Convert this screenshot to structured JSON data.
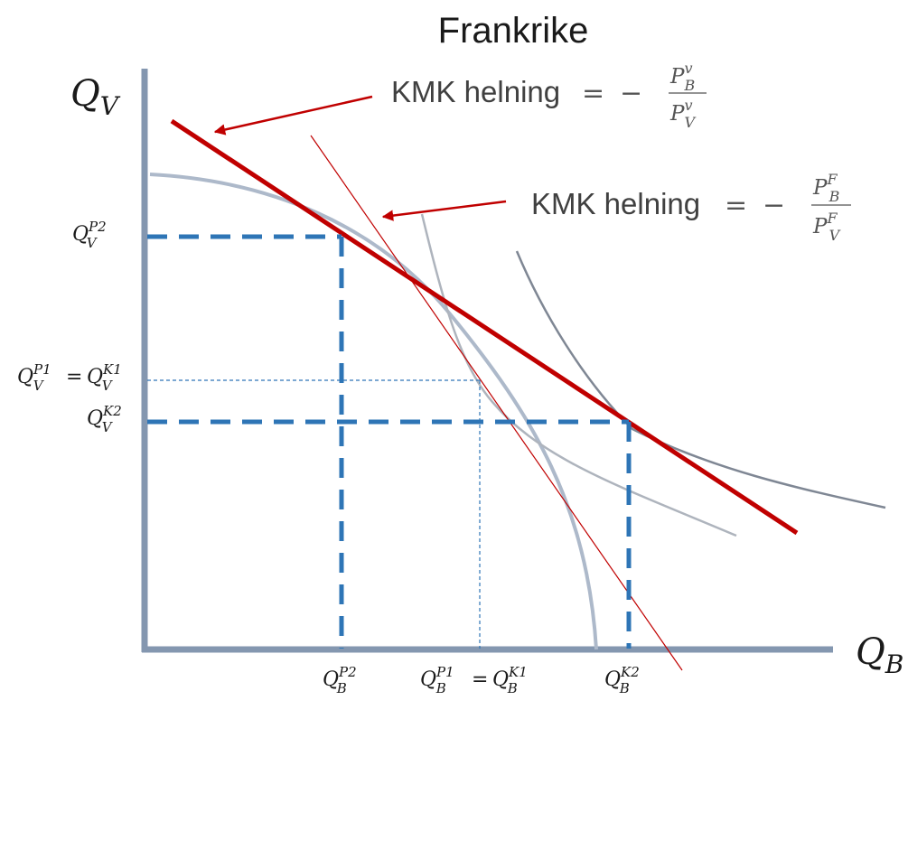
{
  "title": "Frankrike",
  "axes": {
    "y_label": {
      "main": "Q",
      "sub": "V"
    },
    "x_label": {
      "main": "Q",
      "sub": "B"
    }
  },
  "slope_labels": {
    "world": {
      "text": "KMK helning",
      "equals": "=",
      "minus": "−",
      "num": {
        "main": "P",
        "sup": "v",
        "sub": "B"
      },
      "den": {
        "main": "P",
        "sup": "v",
        "sub": "V"
      }
    },
    "france": {
      "text": "KMK helning",
      "equals": "=",
      "minus": "−",
      "num": {
        "main": "P",
        "sup": "F",
        "sub": "B"
      },
      "den": {
        "main": "P",
        "sup": "F",
        "sub": "V"
      }
    }
  },
  "y_ticks": {
    "qv_p2": {
      "main": "Q",
      "sup": "P2",
      "sub": "V"
    },
    "qv_p1_k1": {
      "left": {
        "main": "Q",
        "sup": "P1",
        "sub": "V"
      },
      "equals": "=",
      "right": {
        "main": "Q",
        "sup": "K1",
        "sub": "V"
      }
    },
    "qv_k2": {
      "main": "Q",
      "sup": "K2",
      "sub": "V"
    }
  },
  "x_ticks": {
    "qb_p2": {
      "main": "Q",
      "sup": "P2",
      "sub": "B"
    },
    "qb_p1_k1": {
      "left": {
        "main": "Q",
        "sup": "P1",
        "sub": "B"
      },
      "equals": "=",
      "right": {
        "main": "Q",
        "sup": "K1",
        "sub": "B"
      }
    },
    "qb_k2": {
      "main": "Q",
      "sup": "K2",
      "sub": "B"
    }
  },
  "colors": {
    "axis": "#8497b0",
    "ppf": "#adb9ca",
    "world_price_line": "#c00000",
    "autarky_price_line": "#c00000",
    "indifference_curve_low": "#aeb4bd",
    "indifference_curve_high": "#7f8794",
    "guide_lines": "#2e75b6"
  }
}
